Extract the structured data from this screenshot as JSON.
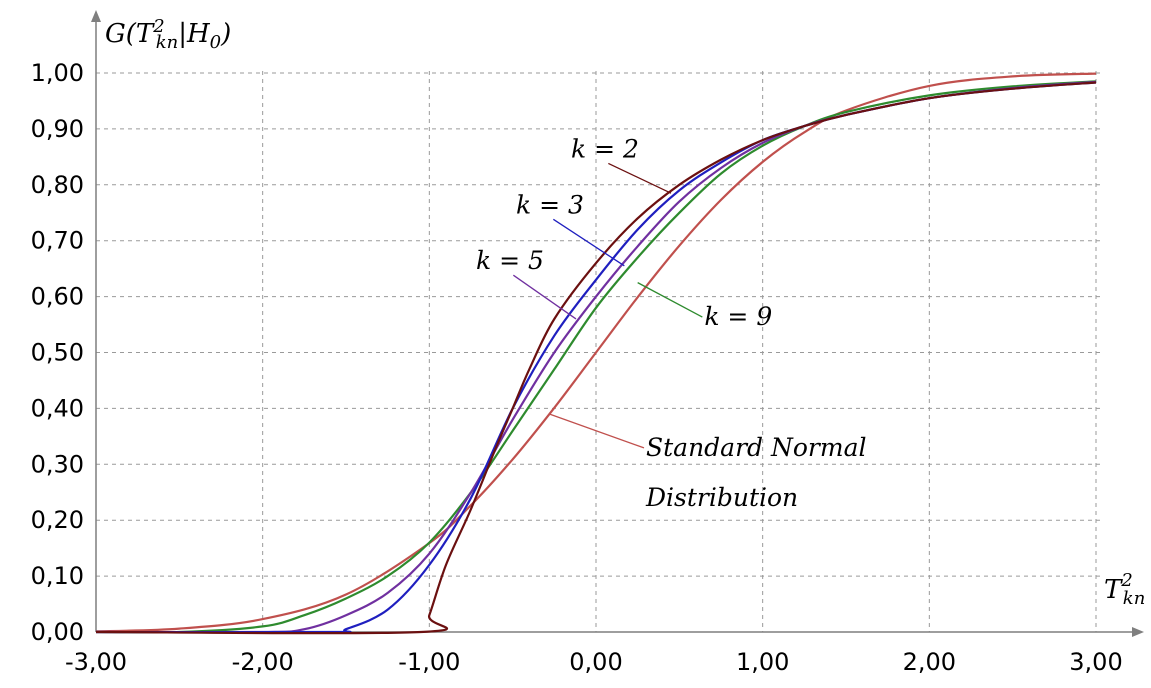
{
  "chart_data": {
    "type": "line",
    "title": "",
    "xlabel": {
      "base": "T",
      "sub": "kn",
      "sup": "2"
    },
    "ylabel": {
      "prefix": "G(",
      "base": "T",
      "sub": "kn",
      "sup": "2",
      "suffix": "|H",
      "suffix_sub": "0",
      "close": ")"
    },
    "xlim": [
      -3.0,
      3.0
    ],
    "ylim": [
      0.0,
      1.0
    ],
    "x_ticks": [
      -3,
      -2,
      -1,
      0,
      1,
      2,
      3
    ],
    "x_tick_labels": [
      "-3,00",
      "-2,00",
      "-1,00",
      "0,00",
      "1,00",
      "2,00",
      "3,00"
    ],
    "y_ticks": [
      0,
      0.1,
      0.2,
      0.3,
      0.4,
      0.5,
      0.6,
      0.7,
      0.8,
      0.9,
      1.0
    ],
    "y_tick_labels": [
      "0,00",
      "0,10",
      "0,20",
      "0,30",
      "0,40",
      "0,50",
      "0,60",
      "0,70",
      "0,80",
      "0,90",
      "1,00"
    ],
    "grid": true,
    "series": [
      {
        "name": "Standard Normal Distribution",
        "color": "#c0504d",
        "x": [
          -3.0,
          -2.5,
          -2.0,
          -1.5,
          -1.0,
          -0.75,
          -0.5,
          -0.25,
          0.0,
          0.25,
          0.5,
          0.75,
          1.0,
          1.25,
          1.5,
          2.0,
          2.5,
          3.0
        ],
        "y": [
          0.001,
          0.006,
          0.023,
          0.067,
          0.159,
          0.227,
          0.309,
          0.401,
          0.5,
          0.599,
          0.691,
          0.773,
          0.841,
          0.894,
          0.933,
          0.977,
          0.994,
          0.999
        ]
      },
      {
        "name": "k = 9",
        "color": "#2e8b2e",
        "x": [
          -3.0,
          -2.5,
          -2.0,
          -1.75,
          -1.5,
          -1.25,
          -1.0,
          -0.75,
          -0.5,
          -0.25,
          0.0,
          0.25,
          0.5,
          0.75,
          1.0,
          1.25,
          1.5,
          2.0,
          2.5,
          3.0
        ],
        "y": [
          0.0,
          0.0,
          0.01,
          0.03,
          0.06,
          0.1,
          0.16,
          0.25,
          0.36,
          0.47,
          0.58,
          0.67,
          0.75,
          0.82,
          0.87,
          0.905,
          0.93,
          0.96,
          0.976,
          0.985
        ]
      },
      {
        "name": "k = 5",
        "color": "#7030a0",
        "x": [
          -3.0,
          -2.0,
          -1.75,
          -1.5,
          -1.25,
          -1.0,
          -0.75,
          -0.5,
          -0.25,
          0.0,
          0.25,
          0.5,
          0.75,
          1.0,
          1.25,
          1.5,
          2.0,
          2.5,
          3.0
        ],
        "y": [
          0.0,
          0.0,
          0.005,
          0.03,
          0.07,
          0.14,
          0.25,
          0.38,
          0.5,
          0.6,
          0.69,
          0.77,
          0.83,
          0.875,
          0.905,
          0.925,
          0.955,
          0.973,
          0.984
        ]
      },
      {
        "name": "k = 3",
        "color": "#1f1fbf",
        "x": [
          -3.0,
          -1.6,
          -1.5,
          -1.25,
          -1.0,
          -0.75,
          -0.5,
          -0.25,
          0.0,
          0.25,
          0.5,
          0.75,
          1.0,
          1.25,
          1.5,
          2.0,
          2.5,
          3.0
        ],
        "y": [
          0.0,
          0.0,
          0.005,
          0.04,
          0.12,
          0.24,
          0.4,
          0.53,
          0.63,
          0.72,
          0.79,
          0.84,
          0.88,
          0.905,
          0.925,
          0.955,
          0.972,
          0.983
        ]
      },
      {
        "name": "k = 2",
        "color": "#6b1010",
        "x": [
          -3.0,
          -1.05,
          -1.0,
          -0.9,
          -0.75,
          -0.6,
          -0.5,
          -0.4,
          -0.25,
          0.0,
          0.25,
          0.5,
          0.75,
          1.0,
          1.25,
          1.5,
          2.0,
          2.5,
          3.0
        ],
        "y": [
          0.0,
          0.0,
          0.03,
          0.12,
          0.22,
          0.33,
          0.4,
          0.47,
          0.56,
          0.66,
          0.74,
          0.8,
          0.845,
          0.88,
          0.905,
          0.925,
          0.955,
          0.972,
          0.983
        ]
      }
    ],
    "annotations": [
      {
        "text": "k = 2",
        "series": "k = 2",
        "label_at": [
          -0.15,
          0.849
        ],
        "points_to": [
          0.45,
          0.785
        ]
      },
      {
        "text": "k = 3",
        "series": "k = 3",
        "label_at": [
          -0.48,
          0.749
        ],
        "points_to": [
          0.17,
          0.655
        ]
      },
      {
        "text": "k = 5",
        "series": "k = 5",
        "label_at": [
          -0.72,
          0.649
        ],
        "points_to": [
          -0.12,
          0.56
        ]
      },
      {
        "text": "k = 9",
        "series": "k = 9",
        "label_at": [
          0.65,
          0.549
        ],
        "points_to": [
          0.25,
          0.625
        ]
      },
      {
        "text": "Standard Normal",
        "series": "Standard Normal Distribution",
        "label_at": [
          0.3,
          0.315
        ],
        "points_to": [
          -0.28,
          0.39
        ]
      },
      {
        "text": "Distribution",
        "series": "Standard Normal Distribution",
        "label_at": [
          0.3,
          0.225
        ]
      }
    ]
  }
}
